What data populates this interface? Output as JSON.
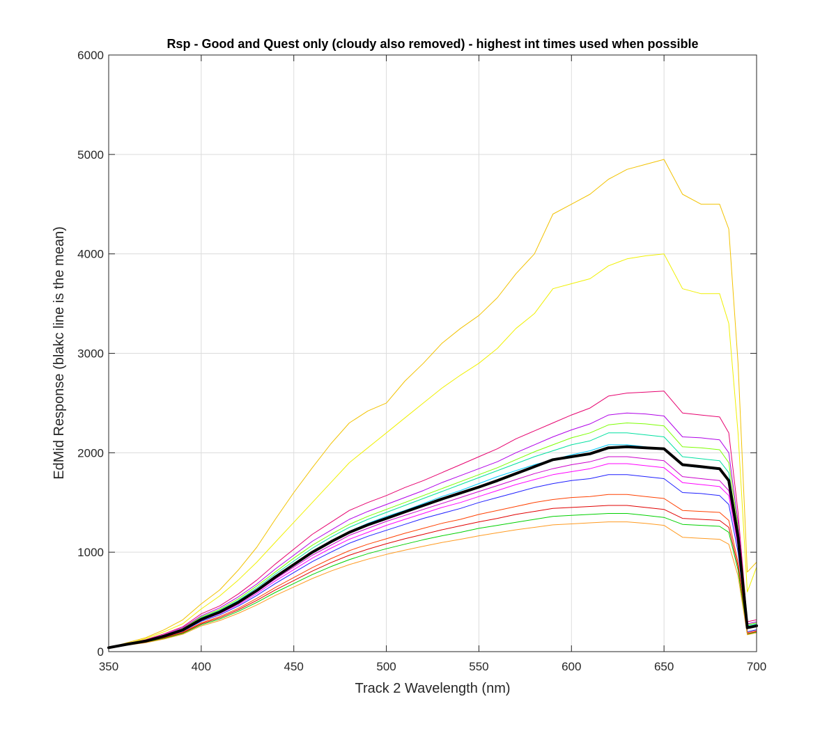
{
  "chart_data": {
    "type": "line",
    "title": "Rsp - Good and Quest only (cloudy also removed) - highest int times used when possible",
    "xlabel": "Track 2 Wavelength (nm)",
    "ylabel": "EdMid Response (blakc line is the mean)",
    "xlim": [
      350,
      700
    ],
    "ylim": [
      0,
      6000
    ],
    "xticks": [
      350,
      400,
      450,
      500,
      550,
      600,
      650,
      700
    ],
    "yticks": [
      0,
      1000,
      2000,
      3000,
      4000,
      5000,
      6000
    ],
    "grid": true,
    "x": [
      350,
      360,
      370,
      380,
      390,
      400,
      410,
      420,
      430,
      440,
      450,
      460,
      470,
      480,
      490,
      500,
      510,
      520,
      530,
      540,
      550,
      560,
      570,
      580,
      590,
      600,
      610,
      620,
      630,
      640,
      650,
      660,
      670,
      680,
      685,
      690,
      695,
      700
    ],
    "series": [
      {
        "color": "#f2c200",
        "width": 1,
        "values": [
          40,
          90,
          140,
          220,
          320,
          480,
          620,
          820,
          1050,
          1330,
          1600,
          1850,
          2090,
          2300,
          2420,
          2500,
          2720,
          2900,
          3100,
          3250,
          3380,
          3560,
          3800,
          4000,
          4400,
          4500,
          4600,
          4750,
          4850,
          4900,
          4950,
          4600,
          4500,
          4500,
          4250,
          2900,
          800,
          900
        ]
      },
      {
        "color": "#f0f000",
        "width": 1,
        "values": [
          40,
          80,
          130,
          200,
          280,
          430,
          560,
          720,
          900,
          1100,
          1300,
          1500,
          1700,
          1900,
          2050,
          2200,
          2350,
          2500,
          2650,
          2780,
          2900,
          3050,
          3250,
          3400,
          3650,
          3700,
          3750,
          3880,
          3950,
          3980,
          4000,
          3650,
          3600,
          3600,
          3300,
          2200,
          600,
          850
        ]
      },
      {
        "color": "#e6006e",
        "width": 1,
        "values": [
          40,
          80,
          120,
          180,
          250,
          380,
          460,
          580,
          720,
          880,
          1030,
          1180,
          1300,
          1420,
          1500,
          1570,
          1650,
          1720,
          1800,
          1880,
          1960,
          2040,
          2140,
          2220,
          2300,
          2380,
          2450,
          2570,
          2600,
          2610,
          2620,
          2400,
          2380,
          2360,
          2200,
          1400,
          300,
          320
        ]
      },
      {
        "color": "#b000e8",
        "width": 1,
        "values": [
          40,
          78,
          115,
          170,
          240,
          360,
          440,
          550,
          680,
          830,
          970,
          1110,
          1220,
          1330,
          1410,
          1480,
          1550,
          1620,
          1700,
          1770,
          1840,
          1910,
          2000,
          2080,
          2160,
          2230,
          2290,
          2380,
          2400,
          2390,
          2370,
          2160,
          2150,
          2130,
          2000,
          1300,
          280,
          300
        ]
      },
      {
        "color": "#7cff00",
        "width": 1,
        "values": [
          40,
          77,
          112,
          165,
          232,
          350,
          425,
          530,
          660,
          800,
          940,
          1070,
          1180,
          1280,
          1360,
          1430,
          1500,
          1570,
          1640,
          1710,
          1780,
          1850,
          1930,
          2010,
          2080,
          2150,
          2200,
          2280,
          2300,
          2290,
          2270,
          2060,
          2050,
          2030,
          1900,
          1250,
          270,
          290
        ]
      },
      {
        "color": "#00e0a0",
        "width": 1,
        "values": [
          40,
          76,
          110,
          162,
          228,
          340,
          415,
          515,
          640,
          780,
          910,
          1040,
          1150,
          1250,
          1330,
          1400,
          1470,
          1540,
          1610,
          1680,
          1750,
          1820,
          1890,
          1960,
          2020,
          2080,
          2120,
          2200,
          2200,
          2180,
          2160,
          1960,
          1940,
          1920,
          1800,
          1200,
          260,
          280
        ]
      },
      {
        "color": "#00c8ff",
        "width": 1,
        "values": [
          40,
          75,
          108,
          158,
          222,
          332,
          405,
          500,
          620,
          755,
          880,
          1000,
          1110,
          1210,
          1290,
          1360,
          1420,
          1490,
          1560,
          1620,
          1690,
          1760,
          1820,
          1880,
          1930,
          1980,
          2020,
          2080,
          2080,
          2060,
          2040,
          1870,
          1850,
          1830,
          1720,
          1150,
          250,
          270
        ]
      },
      {
        "color": "#cc00cc",
        "width": 1,
        "values": [
          40,
          74,
          105,
          154,
          215,
          322,
          392,
          485,
          600,
          730,
          850,
          970,
          1070,
          1170,
          1240,
          1310,
          1370,
          1430,
          1490,
          1550,
          1610,
          1670,
          1730,
          1790,
          1840,
          1880,
          1910,
          1960,
          1960,
          1940,
          1920,
          1760,
          1740,
          1720,
          1620,
          1100,
          240,
          260
        ]
      },
      {
        "color": "#ff00ff",
        "width": 1,
        "values": [
          40,
          73,
          103,
          150,
          210,
          314,
          382,
          472,
          585,
          710,
          825,
          940,
          1040,
          1130,
          1200,
          1270,
          1330,
          1390,
          1450,
          1500,
          1560,
          1620,
          1680,
          1730,
          1780,
          1810,
          1840,
          1890,
          1890,
          1870,
          1850,
          1700,
          1680,
          1660,
          1570,
          1060,
          230,
          250
        ]
      },
      {
        "color": "#1e1eff",
        "width": 1,
        "values": [
          40,
          72,
          100,
          146,
          204,
          305,
          370,
          458,
          565,
          685,
          795,
          905,
          1000,
          1090,
          1160,
          1220,
          1280,
          1340,
          1390,
          1440,
          1500,
          1550,
          1600,
          1650,
          1690,
          1720,
          1740,
          1780,
          1780,
          1760,
          1740,
          1600,
          1590,
          1570,
          1480,
          1000,
          200,
          220
        ]
      },
      {
        "color": "#ff4000",
        "width": 1,
        "values": [
          40,
          70,
          96,
          140,
          195,
          290,
          352,
          435,
          535,
          645,
          745,
          845,
          935,
          1015,
          1080,
          1135,
          1190,
          1240,
          1290,
          1330,
          1380,
          1420,
          1460,
          1500,
          1530,
          1550,
          1560,
          1580,
          1580,
          1560,
          1540,
          1420,
          1410,
          1400,
          1320,
          900,
          190,
          210
        ]
      },
      {
        "color": "#e00000",
        "width": 1,
        "values": [
          40,
          69,
          94,
          136,
          189,
          280,
          340,
          420,
          515,
          620,
          715,
          810,
          895,
          970,
          1030,
          1085,
          1135,
          1180,
          1225,
          1265,
          1305,
          1340,
          1380,
          1410,
          1440,
          1450,
          1460,
          1470,
          1470,
          1450,
          1430,
          1340,
          1330,
          1320,
          1250,
          860,
          180,
          200
        ]
      },
      {
        "color": "#00d000",
        "width": 1,
        "values": [
          40,
          68,
          92,
          132,
          183,
          270,
          328,
          405,
          495,
          595,
          685,
          775,
          855,
          925,
          985,
          1035,
          1080,
          1125,
          1165,
          1200,
          1240,
          1270,
          1300,
          1330,
          1360,
          1370,
          1380,
          1390,
          1390,
          1370,
          1350,
          1280,
          1270,
          1260,
          1200,
          820,
          175,
          195
        ]
      },
      {
        "color": "#ff9a20",
        "width": 1,
        "values": [
          40,
          66,
          89,
          127,
          175,
          258,
          312,
          385,
          470,
          565,
          650,
          735,
          810,
          875,
          930,
          978,
          1020,
          1060,
          1098,
          1130,
          1165,
          1195,
          1225,
          1250,
          1275,
          1285,
          1295,
          1305,
          1305,
          1290,
          1270,
          1150,
          1140,
          1130,
          1080,
          760,
          170,
          190
        ]
      },
      {
        "color": "#000000",
        "width": 4,
        "values": [
          40,
          74,
          106,
          156,
          218,
          325,
          398,
          495,
          615,
          750,
          875,
          1000,
          1105,
          1200,
          1275,
          1340,
          1405,
          1470,
          1535,
          1595,
          1655,
          1720,
          1790,
          1860,
          1930,
          1960,
          1990,
          2050,
          2060,
          2050,
          2040,
          1880,
          1860,
          1840,
          1720,
          1150,
          240,
          260
        ]
      }
    ]
  }
}
